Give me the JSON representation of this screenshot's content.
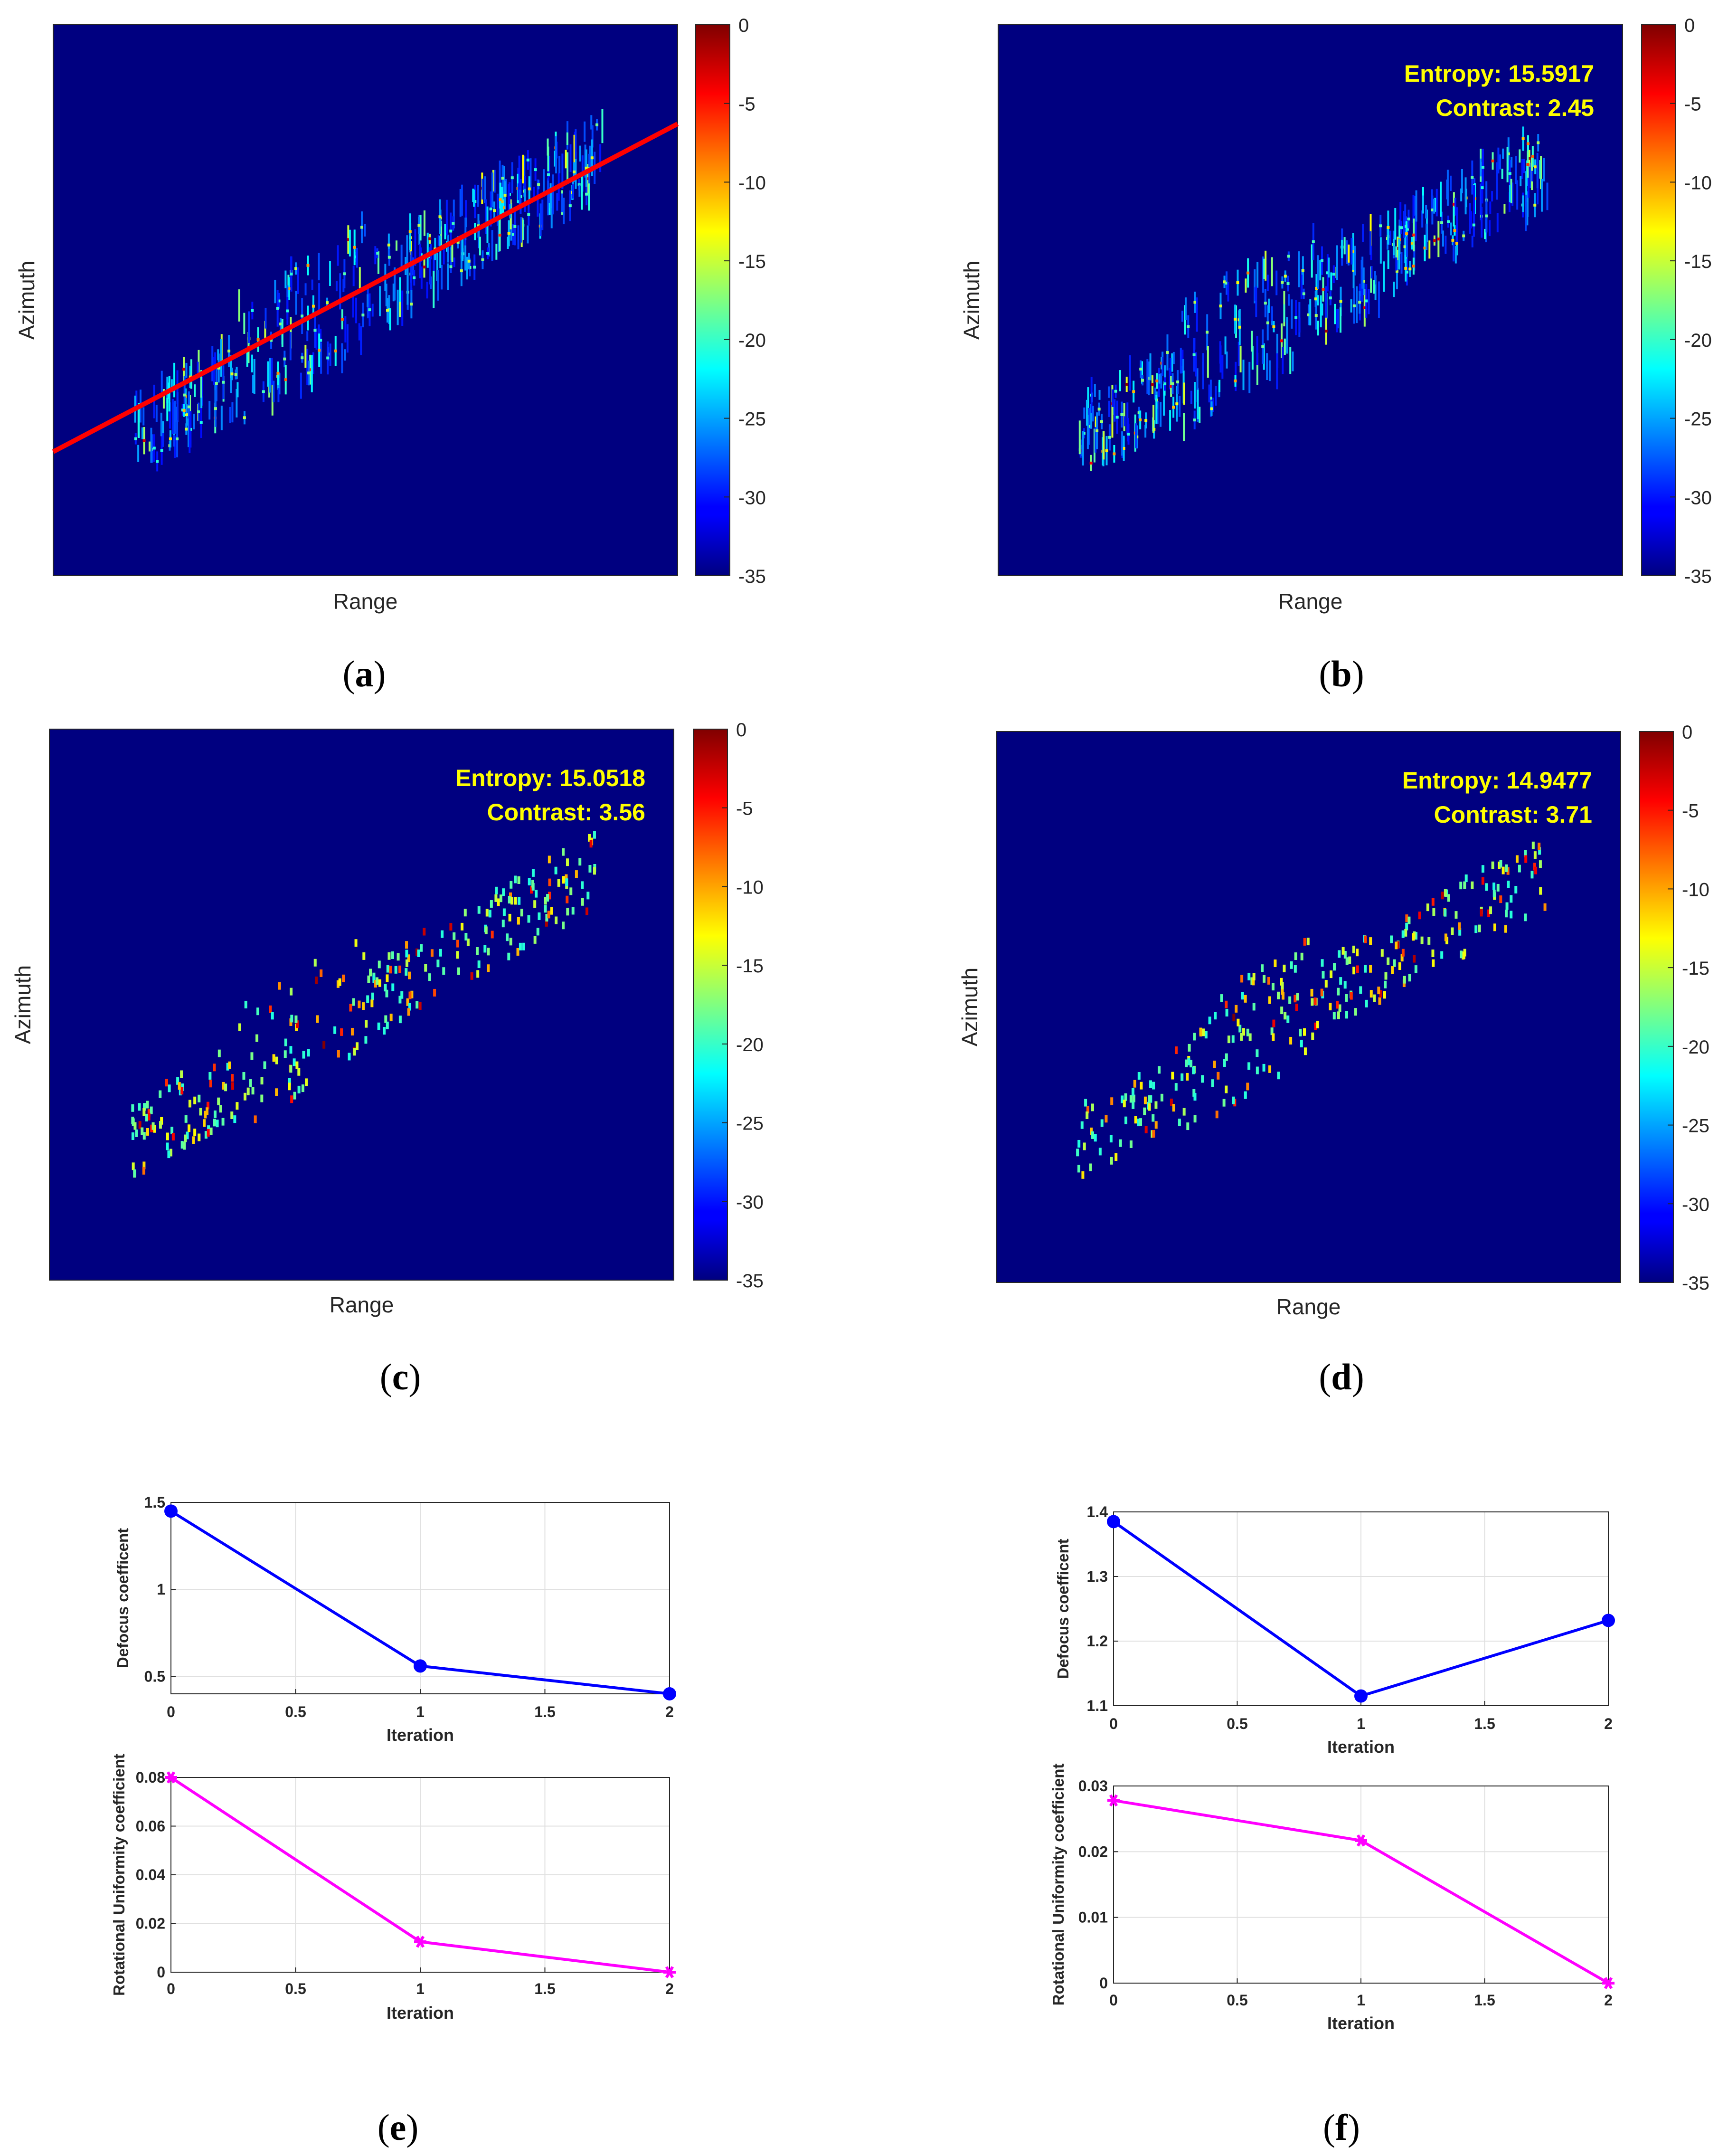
{
  "chart_data": [
    {
      "id": "a",
      "type": "heatmap",
      "panel_label": "a",
      "xlabel": "Range",
      "ylabel": "Azimuth",
      "colorbar": {
        "ticks": [
          0,
          -5,
          -10,
          -15,
          -20,
          -25,
          -30,
          -35
        ],
        "range": [
          -35,
          0
        ],
        "colormap": "jet"
      },
      "annotations": [],
      "overlay_line": {
        "color": "#ff0000",
        "description": "fitted principal axis"
      },
      "scatter_style": "defocused"
    },
    {
      "id": "b",
      "type": "heatmap",
      "panel_label": "b",
      "xlabel": "Range",
      "ylabel": "Azimuth",
      "colorbar": {
        "ticks": [
          0,
          -5,
          -10,
          -15,
          -20,
          -25,
          -30,
          -35
        ],
        "range": [
          -35,
          0
        ],
        "colormap": "jet"
      },
      "annotations": [
        "Entropy: 15.5917",
        "Contrast: 2.45"
      ],
      "scatter_style": "defocused"
    },
    {
      "id": "c",
      "type": "heatmap",
      "panel_label": "c",
      "xlabel": "Range",
      "ylabel": "Azimuth",
      "colorbar": {
        "ticks": [
          0,
          -5,
          -10,
          -15,
          -20,
          -25,
          -30,
          -35
        ],
        "range": [
          -35,
          0
        ],
        "colormap": "jet"
      },
      "annotations": [
        "Entropy: 15.0518",
        "Contrast: 3.56"
      ],
      "scatter_style": "focused"
    },
    {
      "id": "d",
      "type": "heatmap",
      "panel_label": "d",
      "xlabel": "Range",
      "ylabel": "Azimuth",
      "colorbar": {
        "ticks": [
          0,
          -5,
          -10,
          -15,
          -20,
          -25,
          -30,
          -35
        ],
        "range": [
          -35,
          0
        ],
        "colormap": "jet"
      },
      "annotations": [
        "Entropy: 14.9477",
        "Contrast: 3.71"
      ],
      "scatter_style": "focused"
    },
    {
      "id": "e1",
      "type": "line",
      "panel_label": "e",
      "x": [
        0,
        1,
        2
      ],
      "values": [
        1.45,
        0.56,
        0.4
      ],
      "xlabel": "Iteration",
      "ylabel": "Defocus coefficent",
      "xlim": [
        0,
        2
      ],
      "ylim": [
        0.4,
        1.5
      ],
      "xticks": [
        "0",
        "0.5",
        "1",
        "1.5",
        "2"
      ],
      "yticks": [
        "0.5",
        "1",
        "1.5"
      ],
      "color": "#0000ff",
      "marker": "circle",
      "grid": true
    },
    {
      "id": "e2",
      "type": "line",
      "panel_label": "e",
      "x": [
        0,
        1,
        2
      ],
      "values": [
        0.08,
        0.0125,
        0.0
      ],
      "xlabel": "Iteration",
      "ylabel": "Rotational Uniformity coefficient",
      "xlim": [
        0,
        2
      ],
      "ylim": [
        0,
        0.08
      ],
      "xticks": [
        "0",
        "0.5",
        "1",
        "1.5",
        "2"
      ],
      "yticks": [
        "0",
        "0.02",
        "0.04",
        "0.06",
        "0.08"
      ],
      "color": "#ff00ff",
      "marker": "asterisk",
      "grid": true
    },
    {
      "id": "f1",
      "type": "line",
      "panel_label": "f",
      "x": [
        0,
        1,
        2
      ],
      "values": [
        1.385,
        1.115,
        1.232
      ],
      "xlabel": "Iteration",
      "ylabel": "Defocus coefficent",
      "xlim": [
        0,
        2
      ],
      "ylim": [
        1.1,
        1.4
      ],
      "xticks": [
        "0",
        "0.5",
        "1",
        "1.5",
        "2"
      ],
      "yticks": [
        "1.1",
        "1.2",
        "1.3",
        "1.4"
      ],
      "color": "#0000ff",
      "marker": "circle",
      "grid": true
    },
    {
      "id": "f2",
      "type": "line",
      "panel_label": "f",
      "x": [
        0,
        1,
        2
      ],
      "values": [
        0.0278,
        0.0217,
        0.0
      ],
      "xlabel": "Iteration",
      "ylabel": "Rotational Uniformity coefficient",
      "xlim": [
        0,
        2
      ],
      "ylim": [
        0,
        0.03
      ],
      "xticks": [
        "0",
        "0.5",
        "1",
        "1.5",
        "2"
      ],
      "yticks": [
        "0",
        "0.01",
        "0.02",
        "0.03"
      ],
      "color": "#ff00ff",
      "marker": "asterisk",
      "grid": true
    }
  ],
  "captions": [
    "(a)",
    "(b)",
    "(c)",
    "(d)",
    "(e)",
    "(f)"
  ],
  "captions_letters": [
    "a",
    "b",
    "c",
    "d",
    "e",
    "f"
  ]
}
